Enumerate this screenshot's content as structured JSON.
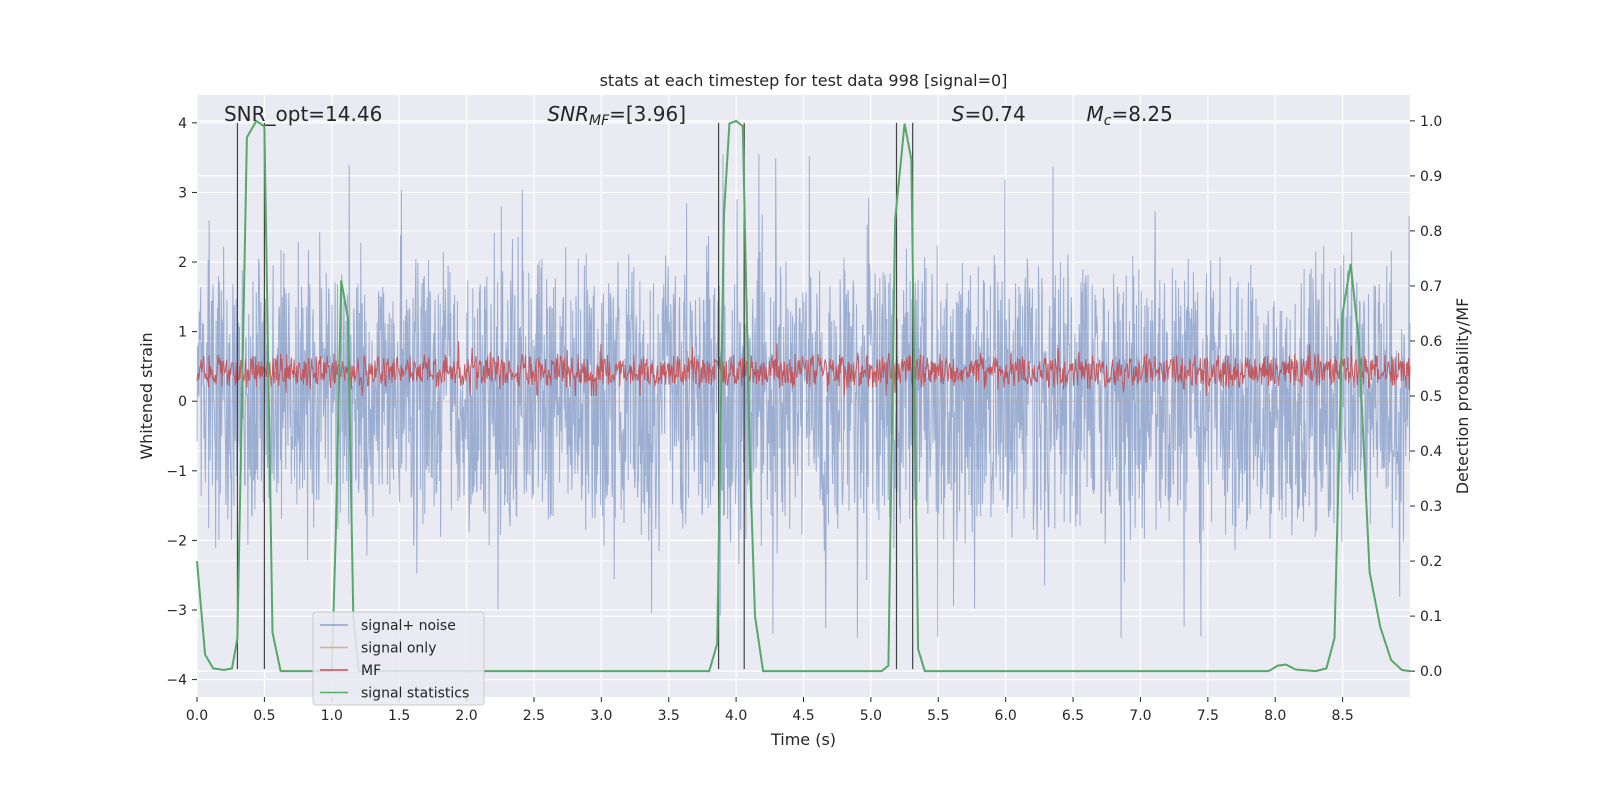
{
  "chart_data": {
    "type": "line",
    "title": "stats at each timestep for test data 998 [signal=0]",
    "xlabel": "Time (s)",
    "ylabel_left": "Whitened strain",
    "ylabel_right": "Detection probability/MF",
    "xlim": [
      0.0,
      9.0
    ],
    "ylim_left": [
      -4.25,
      4.4
    ],
    "ylim_right": [
      -0.047,
      1.047
    ],
    "xticks": [
      0.0,
      0.5,
      1.0,
      1.5,
      2.0,
      2.5,
      3.0,
      3.5,
      4.0,
      4.5,
      5.0,
      5.5,
      6.0,
      6.5,
      7.0,
      7.5,
      8.0,
      8.5
    ],
    "xtick_labels": [
      "0.0",
      "0.5",
      "1.0",
      "1.5",
      "2.0",
      "2.5",
      "3.0",
      "3.5",
      "4.0",
      "4.5",
      "5.0",
      "5.5",
      "6.0",
      "6.5",
      "7.0",
      "7.5",
      "8.0",
      "8.5"
    ],
    "yticks_left": [
      -4,
      -3,
      -2,
      -1,
      0,
      1,
      2,
      3,
      4
    ],
    "ytick_labels_left": [
      "−4",
      "−3",
      "−2",
      "−1",
      "0",
      "1",
      "2",
      "3",
      "4"
    ],
    "yticks_right": [
      0.0,
      0.1,
      0.2,
      0.3,
      0.4,
      0.5,
      0.6,
      0.7,
      0.8,
      0.9,
      1.0
    ],
    "ytick_labels_right": [
      "0.0",
      "0.1",
      "0.2",
      "0.3",
      "0.4",
      "0.5",
      "0.6",
      "0.7",
      "0.8",
      "0.9",
      "1.0"
    ],
    "grid": true,
    "legend_placement": "lower-left",
    "annotations": [
      {
        "text": "SNR_opt=14.46",
        "x": 0.2
      },
      {
        "text": "SNR_MF=[3.96]",
        "x": 2.6,
        "prefix": "SNR",
        "sub": "MF",
        "suffix": "=[3.96]"
      },
      {
        "text": "S=0.74",
        "x": 5.6,
        "prefix": "S",
        "sub": "",
        "suffix": "=0.74"
      },
      {
        "text": "M_c=8.25",
        "x": 6.6,
        "prefix": "M",
        "sub": "c",
        "suffix": "=8.25"
      }
    ],
    "series": [
      {
        "name": "signal+ noise",
        "axis": "left",
        "color": "#4c72b0",
        "kind": "noise",
        "envelope": [
          -2.3,
          2.4
        ],
        "peak_range": [
          -3.4,
          3.6
        ]
      },
      {
        "name": "signal only",
        "axis": "left",
        "color": "#dd8452",
        "kind": "flat",
        "value": 0.0
      },
      {
        "name": "MF",
        "axis": "right",
        "color": "#c44e52",
        "kind": "noise",
        "envelope": [
          0.51,
          0.58
        ],
        "peak_range": [
          0.5,
          0.6
        ]
      },
      {
        "name": "signal statistics",
        "axis": "right",
        "color": "#55a868",
        "kind": "line",
        "x": [
          0.0,
          0.06,
          0.12,
          0.2,
          0.26,
          0.3,
          0.33,
          0.37,
          0.44,
          0.5,
          0.56,
          0.62,
          0.7,
          0.9,
          1.0,
          1.03,
          1.07,
          1.12,
          1.16,
          1.2,
          1.3,
          2.0,
          3.0,
          3.8,
          3.86,
          3.91,
          3.95,
          4.0,
          4.05,
          4.1,
          4.14,
          4.2,
          4.3,
          5.0,
          5.08,
          5.13,
          5.18,
          5.25,
          5.3,
          5.35,
          5.4,
          6.0,
          7.0,
          7.95,
          8.02,
          8.08,
          8.15,
          8.3,
          8.38,
          8.44,
          8.5,
          8.56,
          8.62,
          8.7,
          8.78,
          8.86,
          8.94,
          9.0
        ],
        "values": [
          0.2,
          0.03,
          0.005,
          0.002,
          0.005,
          0.06,
          0.45,
          0.97,
          1.0,
          0.99,
          0.07,
          0.0,
          0.0,
          0.0,
          0.0,
          0.25,
          0.71,
          0.64,
          0.1,
          0.0,
          0.0,
          0.0,
          0.0,
          0.0,
          0.05,
          0.83,
          0.995,
          1.0,
          0.99,
          0.4,
          0.1,
          0.0,
          0.0,
          0.0,
          0.0,
          0.01,
          0.82,
          0.995,
          0.93,
          0.04,
          0.0,
          0.0,
          0.0,
          0.0,
          0.01,
          0.012,
          0.003,
          0.0,
          0.005,
          0.06,
          0.65,
          0.74,
          0.6,
          0.18,
          0.08,
          0.02,
          0.002,
          0.0
        ]
      }
    ],
    "vertical_markers": [
      0.3,
      0.5,
      3.87,
      4.06,
      5.19,
      5.31
    ]
  }
}
